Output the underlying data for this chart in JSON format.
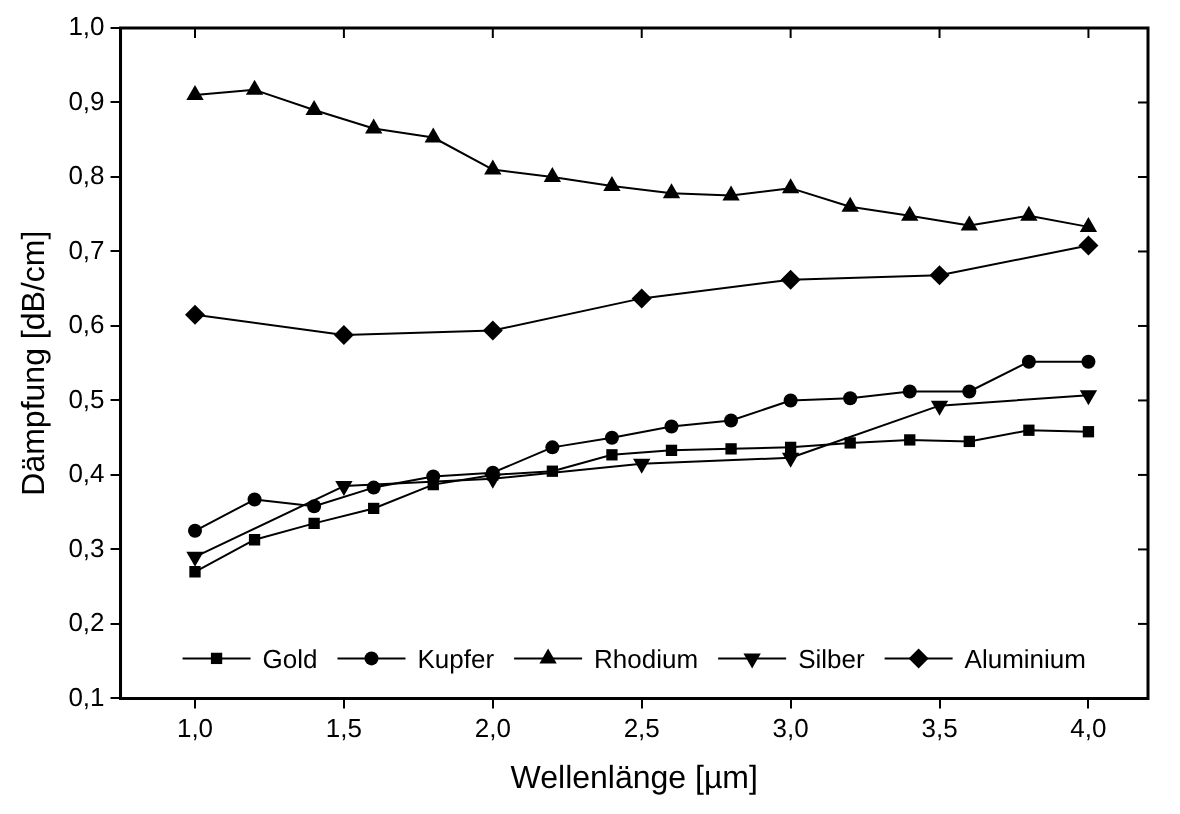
{
  "chart_data": {
    "type": "line",
    "xlabel": "Wellenlänge [µm]",
    "ylabel": "Dämpfung [dB/cm]",
    "xlim": [
      0.75,
      4.2
    ],
    "ylim": [
      0.1,
      1.0
    ],
    "xticks": [
      {
        "value": 1,
        "label": "1,0"
      },
      {
        "value": 1.5,
        "label": "1,5"
      },
      {
        "value": 2,
        "label": "2,0"
      },
      {
        "value": 2.5,
        "label": "2,5"
      },
      {
        "value": 3,
        "label": "3,0"
      },
      {
        "value": 3.5,
        "label": "3,5"
      },
      {
        "value": 4,
        "label": "4,0"
      }
    ],
    "yticks": [
      {
        "value": 0.1,
        "label": "0,1"
      },
      {
        "value": 0.2,
        "label": "0,2"
      },
      {
        "value": 0.3,
        "label": "0,3"
      },
      {
        "value": 0.4,
        "label": "0,4"
      },
      {
        "value": 0.5,
        "label": "0,5"
      },
      {
        "value": 0.6,
        "label": "0,6"
      },
      {
        "value": 0.7,
        "label": "0,7"
      },
      {
        "value": 0.8,
        "label": "0,8"
      },
      {
        "value": 0.9,
        "label": "0,9"
      },
      {
        "value": 1.0,
        "label": "1,0"
      }
    ],
    "legend": "bottom",
    "grid": false,
    "line_style": "solid",
    "series": [
      {
        "name": "Gold",
        "color": "#000000",
        "marker": "square",
        "x": [
          1.0,
          1.2,
          1.4,
          1.6,
          1.8,
          2.0,
          2.2,
          2.4,
          2.6,
          2.8,
          3.0,
          3.2,
          3.4,
          3.6,
          3.8,
          4.0
        ],
        "values": [
          0.27,
          0.313,
          0.335,
          0.355,
          0.387,
          0.4,
          0.405,
          0.427,
          0.433,
          0.435,
          0.437,
          0.443,
          0.447,
          0.445,
          0.46,
          0.458
        ]
      },
      {
        "name": "Kupfer",
        "color": "#000000",
        "marker": "circle",
        "x": [
          1.0,
          1.2,
          1.4,
          1.6,
          1.8,
          2.0,
          2.2,
          2.4,
          2.6,
          2.8,
          3.0,
          3.2,
          3.4,
          3.6,
          3.8,
          4.0
        ],
        "values": [
          0.325,
          0.367,
          0.358,
          0.383,
          0.398,
          0.403,
          0.437,
          0.45,
          0.465,
          0.473,
          0.5,
          0.503,
          0.512,
          0.512,
          0.552,
          0.552
        ]
      },
      {
        "name": "Rhodium",
        "color": "#000000",
        "marker": "triangle",
        "x": [
          1.0,
          1.2,
          1.4,
          1.6,
          1.8,
          2.0,
          2.2,
          2.4,
          2.6,
          2.8,
          3.0,
          3.2,
          3.4,
          3.6,
          3.8,
          4.0
        ],
        "values": [
          0.91,
          0.917,
          0.89,
          0.865,
          0.853,
          0.81,
          0.8,
          0.788,
          0.778,
          0.775,
          0.785,
          0.76,
          0.748,
          0.735,
          0.748,
          0.733
        ]
      },
      {
        "name": "Silber",
        "color": "#000000",
        "marker": "triangle-down",
        "x": [
          1.0,
          1.5,
          2.0,
          2.5,
          3.0,
          3.5,
          4.0
        ],
        "values": [
          0.29,
          0.385,
          0.395,
          0.415,
          0.423,
          0.493,
          0.507
        ]
      },
      {
        "name": "Aluminium",
        "color": "#000000",
        "marker": "diamond",
        "x": [
          1.0,
          1.5,
          2.0,
          2.5,
          3.0,
          3.5,
          4.0
        ],
        "values": [
          0.615,
          0.588,
          0.594,
          0.637,
          0.662,
          0.668,
          0.708
        ]
      }
    ]
  }
}
